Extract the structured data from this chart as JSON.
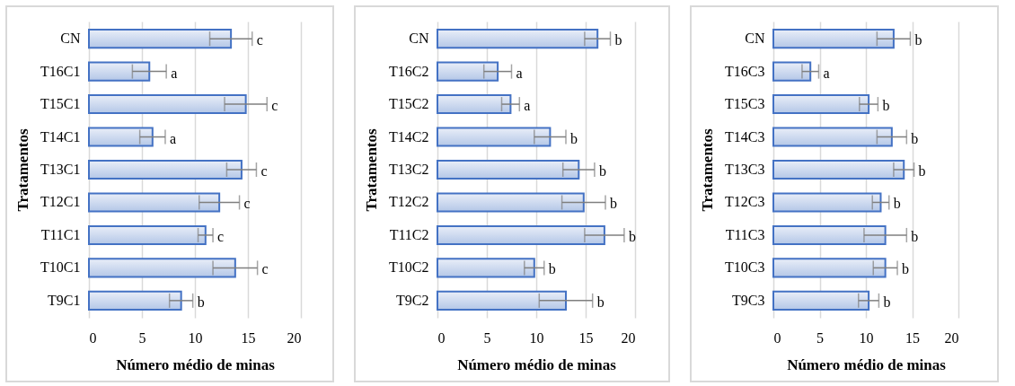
{
  "chart_data": [
    {
      "type": "bar",
      "orientation": "horizontal",
      "xlabel": "Número médio de minas",
      "ylabel": "Tratamentos",
      "categories": [
        "CN",
        "T16C1",
        "T15C1",
        "T14C1",
        "T13C1",
        "T12C1",
        "T11C1",
        "T10C1",
        "T9C1"
      ],
      "values": [
        13.4,
        5.7,
        14.8,
        6.0,
        14.4,
        12.3,
        11.0,
        13.8,
        8.7
      ],
      "errors": [
        2.0,
        1.6,
        2.0,
        1.2,
        1.4,
        1.9,
        0.7,
        2.1,
        1.1
      ],
      "value_labels": [
        "c",
        "a",
        "c",
        "a",
        "c",
        "c",
        "c",
        "c",
        "b"
      ],
      "color": "#4472c4",
      "xlim": [
        0,
        20
      ],
      "xticks": [
        0,
        5,
        10,
        15,
        20
      ],
      "grid": "x"
    },
    {
      "type": "bar",
      "orientation": "horizontal",
      "xlabel": "Número médio de minas",
      "ylabel": "Tratamentos",
      "categories": [
        "CN",
        "T16C2",
        "T15C2",
        "T14C2",
        "T13C2",
        "T12C2",
        "T11C2",
        "T10C2",
        "T9C2"
      ],
      "values": [
        16.2,
        6.1,
        7.4,
        11.4,
        14.3,
        14.8,
        16.9,
        9.8,
        13.0
      ],
      "errors": [
        1.3,
        1.4,
        0.9,
        1.6,
        1.6,
        2.2,
        2.0,
        1.0,
        2.7
      ],
      "value_labels": [
        "b",
        "a",
        "a",
        "b",
        "b",
        "b",
        "b",
        "b",
        "b"
      ],
      "color": "#4472c4",
      "xlim": [
        0,
        20
      ],
      "xticks": [
        0,
        5,
        10,
        15,
        20
      ],
      "grid": "x"
    },
    {
      "type": "bar",
      "orientation": "horizontal",
      "xlabel": "Número médio de minas",
      "ylabel": "Tratamentos",
      "categories": [
        "CN",
        "T16C3",
        "T15C3",
        "T14C3",
        "T13C3",
        "T12C3",
        "T11C3",
        "T10C3",
        "T9C3"
      ],
      "values": [
        13.0,
        4.0,
        10.3,
        12.8,
        14.1,
        11.6,
        12.1,
        12.1,
        10.3
      ],
      "errors": [
        1.8,
        0.9,
        1.0,
        1.6,
        1.1,
        0.9,
        2.3,
        1.3,
        1.1
      ],
      "value_labels": [
        "b",
        "a",
        "b",
        "b",
        "b",
        "b",
        "b",
        "b",
        "b"
      ],
      "color": "#4472c4",
      "xlim": [
        0,
        20
      ],
      "xticks": [
        0,
        5,
        10,
        15,
        20
      ],
      "grid": "x"
    }
  ]
}
